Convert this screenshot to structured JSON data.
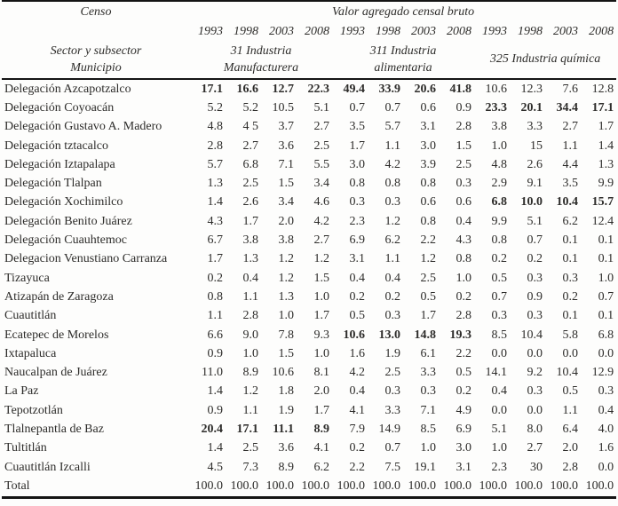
{
  "header": {
    "censo": "Censo",
    "value_title": "Valor agregado censal bruto",
    "years": [
      "1993",
      "1998",
      "2003",
      "2008",
      "1993",
      "1998",
      "2003",
      "2008",
      "1993",
      "1998",
      "2003",
      "2008"
    ],
    "sector_label": "Sector y subsector",
    "municipio_label": "Municipio",
    "groups": [
      {
        "line1": "31 Industria",
        "line2": "Manufacturera"
      },
      {
        "line1": "311 Industria",
        "line2": "alimentaria"
      },
      {
        "line1": "325 Industria química",
        "line2": ""
      }
    ]
  },
  "table": {
    "rows": [
      {
        "label": "Delegación Azcapotzalco",
        "values": [
          "17.1",
          "16.6",
          "12.7",
          "22.3",
          "49.4",
          "33.9",
          "20.6",
          "41.8",
          "10.6",
          "12.3",
          "7.6",
          "12.8"
        ],
        "bold": [
          0,
          1,
          2,
          3,
          4,
          5,
          6,
          7
        ]
      },
      {
        "label": "Delegación Coyoacán",
        "values": [
          "5.2",
          "5.2",
          "10.5",
          "5.1",
          "0.7",
          "0.7",
          "0.6",
          "0.9",
          "23.3",
          "20.1",
          "34.4",
          "17.1"
        ],
        "bold": [
          8,
          9,
          10,
          11
        ]
      },
      {
        "label": "Delegación Gustavo A. Madero",
        "values": [
          "4.8",
          "4 5",
          "3.7",
          "2.7",
          "3.5",
          "5.7",
          "3.1",
          "2.8",
          "3.8",
          "3.3",
          "2.7",
          "1.7"
        ],
        "bold": []
      },
      {
        "label": "Delegación tztacalco",
        "values": [
          "2.8",
          "2.7",
          "3.6",
          "2.5",
          "1.7",
          "1.1",
          "3.0",
          "1.5",
          "1.0",
          "15",
          "1.1",
          "1.4"
        ],
        "bold": []
      },
      {
        "label": "Delegación Iztapalapa",
        "values": [
          "5.7",
          "6.8",
          "7.1",
          "5.5",
          "3.0",
          "4.2",
          "3.9",
          "2.5",
          "4.8",
          "2.6",
          "4.4",
          "1.3"
        ],
        "bold": []
      },
      {
        "label": "Delegación Tlalpan",
        "values": [
          "1.3",
          "2.5",
          "1.5",
          "3.4",
          "0.8",
          "0.8",
          "0.8",
          "0.3",
          "2.9",
          "9.1",
          "3.5",
          "9.9"
        ],
        "bold": []
      },
      {
        "label": "Delegación Xochimilco",
        "values": [
          "1.4",
          "2.6",
          "3.4",
          "4.6",
          "0.3",
          "0.3",
          "0.6",
          "0.6",
          "6.8",
          "10.0",
          "10.4",
          "15.7"
        ],
        "bold": [
          8,
          9,
          10,
          11
        ]
      },
      {
        "label": "Delegación Benito Juárez",
        "values": [
          "4.3",
          "1.7",
          "2.0",
          "4.2",
          "2.3",
          "1.2",
          "0.8",
          "0.4",
          "9.9",
          "5.1",
          "6.2",
          "12.4"
        ],
        "bold": []
      },
      {
        "label": "Delegación Cuauhtemoc",
        "values": [
          "6.7",
          "3.8",
          "3.8",
          "2.7",
          "6.9",
          "6.2",
          "2.2",
          "4.3",
          "0.8",
          "0.7",
          "0.1",
          "0.1"
        ],
        "bold": []
      },
      {
        "label": "Delegacion Venustiano Carranza",
        "values": [
          "1.7",
          "1.3",
          "1.2",
          "1.2",
          "3.1",
          "1.1",
          "1.2",
          "0.8",
          "0.2",
          "0.2",
          "0.1",
          "0.1"
        ],
        "bold": []
      },
      {
        "label": "Tizayuca",
        "values": [
          "0.2",
          "0.4",
          "1.2",
          "1.5",
          "0.4",
          "0.4",
          "2.5",
          "1.0",
          "0.5",
          "0.3",
          "0.3",
          "1.0"
        ],
        "bold": []
      },
      {
        "label": "Atizapán de Zaragoza",
        "values": [
          "0.8",
          "1.1",
          "1.3",
          "1.0",
          "0.2",
          "0.2",
          "0.5",
          "0.2",
          "0.7",
          "0.9",
          "0.2",
          "0.7"
        ],
        "bold": []
      },
      {
        "label": "Cuautitlán",
        "values": [
          "1.1",
          "2.8",
          "1.0",
          "1.7",
          "0.5",
          "0.3",
          "1.7",
          "2.8",
          "0.3",
          "0.3",
          "0.1",
          "0.1"
        ],
        "bold": []
      },
      {
        "label": "Ecatepec de Morelos",
        "values": [
          "6.6",
          "9.0",
          "7.8",
          "9.3",
          "10.6",
          "13.0",
          "14.8",
          "19.3",
          "8.5",
          "10.4",
          "5.8",
          "6.8"
        ],
        "bold": [
          4,
          5,
          6,
          7
        ]
      },
      {
        "label": "Ixtapaluca",
        "values": [
          "0.9",
          "1.0",
          "1.5",
          "1.0",
          "1.6",
          "1.9",
          "6.1",
          "2.2",
          "0.0",
          "0.0",
          "0.0",
          "0.0"
        ],
        "bold": []
      },
      {
        "label": "Naucalpan de Juárez",
        "values": [
          "11.0",
          "8.9",
          "10.6",
          "8.1",
          "4.2",
          "2.5",
          "3.3",
          "0.5",
          "14.1",
          "9.2",
          "10.4",
          "12.9"
        ],
        "bold": []
      },
      {
        "label": "La Paz",
        "values": [
          "1.4",
          "1.2",
          "1.8",
          "2.0",
          "0.4",
          "0.3",
          "0.3",
          "0.2",
          "0.4",
          "0.3",
          "0.5",
          "0.3"
        ],
        "bold": []
      },
      {
        "label": "Tepotzotlán",
        "values": [
          "0.9",
          "1.1",
          "1.9",
          "1.7",
          "4.1",
          "3.3",
          "7.1",
          "4.9",
          "0.0",
          "0.0",
          "1.1",
          "0.4"
        ],
        "bold": []
      },
      {
        "label": "Tlalnepantla de Baz",
        "values": [
          "20.4",
          "17.1",
          "11.1",
          "8.9",
          "7.9",
          "14.9",
          "8.5",
          "6.9",
          "5.1",
          "8.0",
          "6.4",
          "4.0"
        ],
        "bold": [
          0,
          1,
          2,
          3
        ]
      },
      {
        "label": "Tultitlán",
        "values": [
          "1.4",
          "2.5",
          "3.6",
          "4.1",
          "0.2",
          "0.7",
          "1.0",
          "3.0",
          "1.0",
          "2.7",
          "2.0",
          "1.6"
        ],
        "bold": []
      },
      {
        "label": "Cuautitlán Izcalli",
        "values": [
          "4.5",
          "7.3",
          "8.9",
          "6.2",
          "2.2",
          "7.5",
          "19.1",
          "3.1",
          "2.3",
          "30",
          "2.8",
          "0.0"
        ],
        "bold": []
      },
      {
        "label": "Total",
        "values": [
          "100.0",
          "100.0",
          "100.0",
          "100.0",
          "100.0",
          "100.0",
          "100.0",
          "100.0",
          "100.0",
          "100.0",
          "100.0",
          "100.0"
        ],
        "bold": []
      }
    ]
  },
  "colors": {
    "text": "#2d2c2a",
    "rule": "#141414",
    "background": "#fdfdfc"
  }
}
